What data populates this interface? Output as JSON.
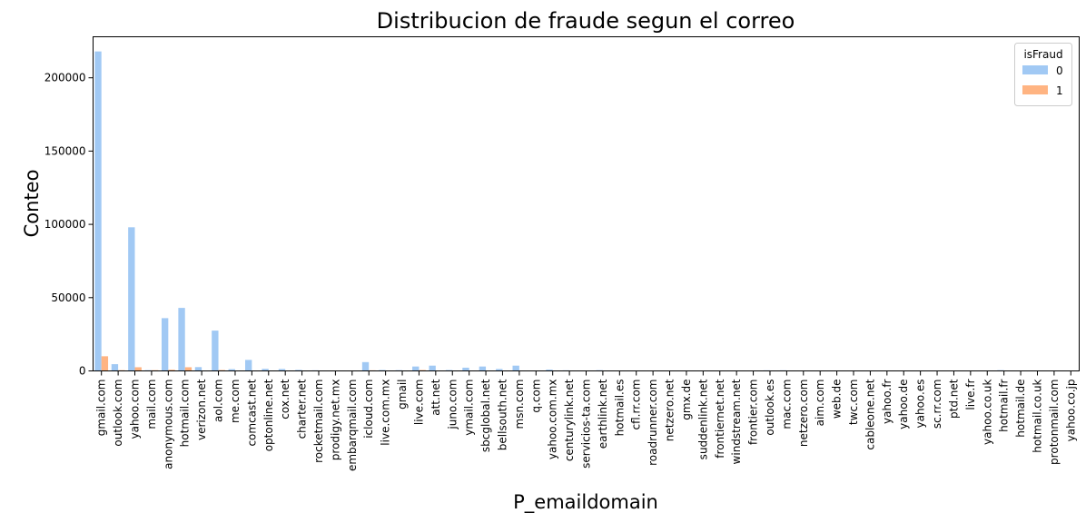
{
  "chart_data": {
    "type": "bar",
    "title": "Distribucion de fraude segun el correo",
    "xlabel": "P_emaildomain",
    "ylabel": "Conteo",
    "ylim": [
      0,
      228000
    ],
    "yticks": [
      0,
      50000,
      100000,
      150000,
      200000
    ],
    "grid": false,
    "legend": {
      "title": "isFraud",
      "placement": "top-right"
    },
    "categories": [
      "gmail.com",
      "outlook.com",
      "yahoo.com",
      "mail.com",
      "anonymous.com",
      "hotmail.com",
      "verizon.net",
      "aol.com",
      "me.com",
      "comcast.net",
      "optonline.net",
      "cox.net",
      "charter.net",
      "rocketmail.com",
      "prodigy.net.mx",
      "embarqmail.com",
      "icloud.com",
      "live.com.mx",
      "gmail",
      "live.com",
      "att.net",
      "juno.com",
      "ymail.com",
      "sbcglobal.net",
      "bellsouth.net",
      "msn.com",
      "q.com",
      "yahoo.com.mx",
      "centurylink.net",
      "servicios-ta.com",
      "earthlink.net",
      "hotmail.es",
      "cfl.rr.com",
      "roadrunner.com",
      "netzero.net",
      "gmx.de",
      "suddenlink.net",
      "frontiernet.net",
      "windstream.net",
      "frontier.com",
      "outlook.es",
      "mac.com",
      "netzero.com",
      "aim.com",
      "web.de",
      "twc.com",
      "cableone.net",
      "yahoo.fr",
      "yahoo.de",
      "yahoo.es",
      "sc.rr.com",
      "ptd.net",
      "live.fr",
      "yahoo.co.uk",
      "hotmail.fr",
      "hotmail.de",
      "hotmail.co.uk",
      "protonmail.com",
      "yahoo.co.jp"
    ],
    "series": [
      {
        "name": "0",
        "color": "#a1c9f4",
        "values": [
          218000,
          4600,
          98000,
          500,
          36000,
          43000,
          2600,
          27500,
          1200,
          7500,
          1400,
          1300,
          700,
          400,
          50,
          240,
          6000,
          600,
          500,
          3000,
          3600,
          600,
          2200,
          3000,
          1300,
          3600,
          60,
          900,
          400,
          300,
          500,
          100,
          150,
          200,
          150,
          50,
          150,
          200,
          300,
          250,
          400,
          400,
          200,
          50,
          10,
          150,
          10,
          100,
          70,
          50,
          10,
          50,
          30,
          20,
          500,
          30,
          20,
          60,
          30
        ]
      },
      {
        "name": "1",
        "color": "#ffb482",
        "values": [
          10000,
          500,
          2500,
          500,
          800,
          2500,
          200,
          600,
          50,
          200,
          20,
          20,
          20,
          20,
          10,
          10,
          400,
          20,
          20,
          600,
          30,
          20,
          100,
          100,
          20,
          100,
          10,
          40,
          20,
          20,
          20,
          20,
          10,
          10,
          10,
          10,
          10,
          10,
          10,
          10,
          100,
          30,
          10,
          10,
          10,
          10,
          10,
          10,
          10,
          10,
          10,
          10,
          10,
          10,
          100,
          10,
          10,
          80,
          10
        ]
      }
    ]
  }
}
